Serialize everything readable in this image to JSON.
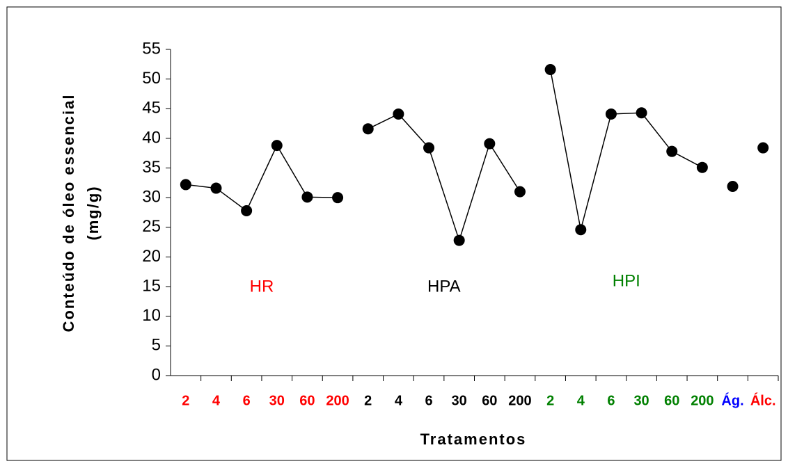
{
  "chart_data": {
    "type": "line",
    "categories": [
      "2",
      "4",
      "6",
      "30",
      "60",
      "200",
      "2",
      "4",
      "6",
      "30",
      "60",
      "200",
      "2",
      "4",
      "6",
      "30",
      "60",
      "200",
      "Ág.",
      "Álc."
    ],
    "category_colors": [
      "#ff0000",
      "#ff0000",
      "#ff0000",
      "#ff0000",
      "#ff0000",
      "#ff0000",
      "#000000",
      "#000000",
      "#000000",
      "#000000",
      "#000000",
      "#000000",
      "#008000",
      "#008000",
      "#008000",
      "#008000",
      "#008000",
      "#008000",
      "#0000ff",
      "#ff0000"
    ],
    "series": [
      {
        "name": "HR",
        "color": "#ff0000",
        "values": [
          32.2,
          31.6,
          27.8,
          38.8,
          30.1,
          30.0,
          null,
          null,
          null,
          null,
          null,
          null,
          null,
          null,
          null,
          null,
          null,
          null,
          null,
          null
        ]
      },
      {
        "name": "HPA",
        "color": "#000000",
        "values": [
          null,
          null,
          null,
          null,
          null,
          null,
          41.6,
          44.1,
          38.4,
          22.8,
          39.1,
          31.0,
          null,
          null,
          null,
          null,
          null,
          null,
          null,
          null
        ]
      },
      {
        "name": "HPI",
        "color": "#008000",
        "values": [
          null,
          null,
          null,
          null,
          null,
          null,
          null,
          null,
          null,
          null,
          null,
          null,
          51.6,
          24.6,
          44.1,
          44.3,
          37.8,
          35.1,
          null,
          null
        ]
      },
      {
        "color": "#000000",
        "values": [
          null,
          null,
          null,
          null,
          null,
          null,
          null,
          null,
          null,
          null,
          null,
          null,
          null,
          null,
          null,
          null,
          null,
          null,
          31.9,
          null
        ]
      },
      {
        "color": "#000000",
        "values": [
          null,
          null,
          null,
          null,
          null,
          null,
          null,
          null,
          null,
          null,
          null,
          null,
          null,
          null,
          null,
          null,
          null,
          null,
          null,
          38.4
        ]
      }
    ],
    "ylabel": [
      "Conteúdo de óleo essencial",
      "(mg/g)"
    ],
    "xlabel": "Tratamentos",
    "ylim": [
      0,
      55
    ],
    "yticks": [
      0,
      5,
      10,
      15,
      20,
      25,
      30,
      35,
      40,
      45,
      50,
      55
    ]
  }
}
